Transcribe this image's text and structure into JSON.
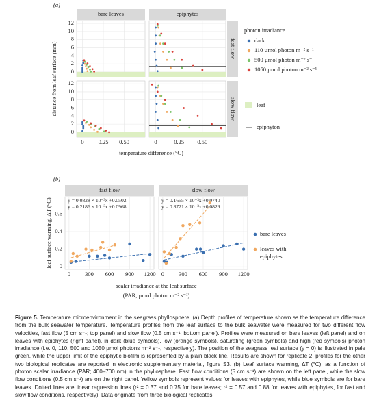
{
  "panel_labels": [
    "(a)",
    "(b)"
  ],
  "chart_data": [
    {
      "type": "scatter",
      "x_label": "temperature difference (°C)",
      "y_label": "distance from leaf surface (mm)",
      "columns": [
        "bare leaves",
        "epiphytes"
      ],
      "rows": [
        "fast flow",
        "slow flow"
      ],
      "xlim": [
        -0.07,
        0.75
      ],
      "xticks": [
        0,
        0.25,
        {
          "value": 0.5,
          "label": "0.50"
        }
      ],
      "ylim": [
        -1.2,
        12.7
      ],
      "yticks": [
        0,
        2,
        4,
        6,
        8,
        10,
        12
      ],
      "grid": true,
      "legend_title": "photon irradiance",
      "series": [
        {
          "name": "dark",
          "color": "#3a6fb0"
        },
        {
          "name": "110 µmol photon m⁻² s⁻¹",
          "color": "#f0a860"
        },
        {
          "name": "500 µmol photon m⁻² s⁻¹",
          "color": "#7cc46a"
        },
        {
          "name": "1050 µmol photon m⁻² s⁻¹",
          "color": "#d9413a"
        }
      ],
      "leaf_label": "leaf",
      "leaf_color": "#ddefc2",
      "epiphyton_label": "epiphyton",
      "panels": [
        [
          {
            "data": [
              {
                "x": [
                  0.01,
                  0.01,
                  0,
                  0,
                  0,
                  0
                ],
                "y": [
                  2.8,
                  2.2,
                  1.6,
                  1,
                  0.5,
                  0
                ]
              },
              {
                "x": [
                  0.02,
                  0.03,
                  0.04,
                  0.05,
                  0.06
                ],
                "y": [
                  2.6,
                  2,
                  1.4,
                  0.8,
                  0.2
                ]
              },
              {
                "x": [
                  0.03,
                  0.05,
                  0.07,
                  0.09,
                  0.1
                ],
                "y": [
                  2.5,
                  1.8,
                  1.2,
                  0.6,
                  0.1
                ]
              },
              {
                "x": [
                  0.02,
                  0.06,
                  0.09,
                  0.12,
                  0.14
                ],
                "y": [
                  2.9,
                  2.1,
                  1.4,
                  0.7,
                  0.1
                ]
              }
            ]
          },
          {
            "epiphyton_y": 1.3,
            "data": [
              {
                "x": [
                  0,
                  0,
                  0,
                  -0.01,
                  0,
                  0.01,
                  0.02
                ],
                "y": [
                  11,
                  9,
                  7,
                  5,
                  3,
                  1.5,
                  0.2
                ]
              },
              {
                "x": [
                  0.03,
                  0.04,
                  0.05,
                  0.08,
                  0.12,
                  0.16
                ],
                "y": [
                  11,
                  9,
                  7,
                  5,
                  3,
                  1
                ]
              },
              {
                "x": [
                  0.02,
                  0.05,
                  0.08,
                  0.14,
                  0.2,
                  0.28
                ],
                "y": [
                  11.5,
                  9,
                  7,
                  5,
                  3,
                  1
                ]
              },
              {
                "x": [
                  0.02,
                  0.06,
                  0.1,
                  0.18,
                  0.28,
                  0.4,
                  0.5
                ],
                "y": [
                  11.8,
                  9.5,
                  7,
                  5,
                  3,
                  1.5,
                  0.5
                ]
              }
            ]
          }
        ],
        [
          {
            "data": [
              {
                "x": [
                  0,
                  0,
                  0.01,
                  0.01,
                  0
                ],
                "y": [
                  2.5,
                  2,
                  1.5,
                  1,
                  0.3
                ]
              },
              {
                "x": [
                  0.04,
                  0.08,
                  0.1,
                  0.14,
                  0.18
                ],
                "y": [
                  2.3,
                  1.8,
                  1.2,
                  0.6,
                  0.1
                ]
              },
              {
                "x": [
                  0.05,
                  0.1,
                  0.15,
                  0.2,
                  0.26
                ],
                "y": [
                  2.6,
                  2,
                  1.4,
                  0.8,
                  0.2
                ]
              },
              {
                "x": [
                  0.02,
                  0.1,
                  0.16,
                  0.22,
                  0.28,
                  0.32
                ],
                "y": [
                  2.9,
                  2.2,
                  1.6,
                  1,
                  0.4,
                  0
                ]
              }
            ]
          },
          {
            "epiphyton_y": 1.6,
            "data": [
              {
                "x": [
                  0,
                  0,
                  0.01,
                  0,
                  0.02,
                  0.03
                ],
                "y": [
                  11,
                  9,
                  7,
                  5,
                  3,
                  1
                ]
              },
              {
                "x": [
                  0.02,
                  0.05,
                  0.08,
                  0.12,
                  0.18,
                  0.24
                ],
                "y": [
                  11,
                  9,
                  7,
                  5,
                  3,
                  1.5
                ]
              },
              {
                "x": [
                  0.03,
                  0.06,
                  0.1,
                  0.16,
                  0.26,
                  0.36
                ],
                "y": [
                  11.5,
                  9,
                  7,
                  5,
                  3,
                  1.2
                ]
              },
              {
                "x": [
                  -0.04,
                  0.02,
                  0.1,
                  0.3,
                  0.45,
                  0.6,
                  0.7
                ],
                "y": [
                  11.8,
                  10,
                  8,
                  6,
                  4,
                  2,
                  1
                ]
              }
            ]
          }
        ]
      ]
    },
    {
      "type": "scatter",
      "x_label": [
        "scalar irradiance at the leaf surface",
        "(PAR, µmol photon m⁻² s⁻¹)"
      ],
      "y_label": "leaf surface warming, ΔT (°C)",
      "columns": [
        "fast flow",
        "slow flow"
      ],
      "rows": [],
      "xlim": [
        -60,
        1260
      ],
      "xticks": [
        0,
        300,
        600,
        900,
        1200
      ],
      "ylim": [
        -0.03,
        0.8
      ],
      "yticks": [
        0,
        {
          "value": 0.2,
          "label": "0.2"
        },
        {
          "value": 0.4,
          "label": "0.4"
        },
        {
          "value": 0.6,
          "label": "0.6"
        }
      ],
      "grid": true,
      "series": [
        {
          "name": "bare leaves",
          "color": "#3a6fb0"
        },
        {
          "name": "leaves with epiphytes",
          "color": "#f0a860"
        }
      ],
      "panels": [
        [
          {
            "data": [
              {
                "x": [
                  30,
                  100,
                  300,
                  420,
                  530,
                  600,
                  900,
                  1100,
                  1200
                ],
                "y": [
                  0.05,
                  0.06,
                  0.12,
                  0.12,
                  0.13,
                  0.1,
                  0.26,
                  0.07,
                  0.14
                ],
                "fit": {
                  "slope": 8.28e-05,
                  "intercept": 0.0502,
                  "label": "y = 0.0828 × 10⁻³x +0.0502"
                }
              },
              {
                "x": [
                  30,
                  60,
                  120,
                  250,
                  340,
                  470,
                  500,
                  600,
                  680
                ],
                "y": [
                  0.06,
                  0.15,
                  0.12,
                  0.2,
                  0.19,
                  0.22,
                  0.28,
                  0.19,
                  0.25
                ],
                "fit": {
                  "slope": 0.0002186,
                  "intercept": 0.0968,
                  "label": "y = 0.2186 × 10⁻³x +0.0968"
                }
              }
            ]
          },
          {
            "data": [
              {
                "x": [
                  20,
                  60,
                  130,
                  300,
                  500,
                  560,
                  600,
                  900,
                  1100,
                  1200
                ],
                "y": [
                  0.06,
                  0.05,
                  0.14,
                  0.12,
                  0.2,
                  0.2,
                  0.16,
                  0.24,
                  0.26,
                  0.2
                ],
                "fit": {
                  "slope": 0.0001655,
                  "intercept": 0.074,
                  "label": "y = 0.1655 × 10⁻³x +0.0740"
                }
              },
              {
                "x": [
                  20,
                  50,
                  100,
                  200,
                  260,
                  300,
                  400,
                  550,
                  700
                ],
                "y": [
                  0.17,
                  0.04,
                  0.15,
                  0.22,
                  0.32,
                  0.47,
                  0.48,
                  0.5,
                  0.73
                ],
                "fit": {
                  "slope": 0.0008721,
                  "intercept": 0.0829,
                  "label": "y = 0.8721 × 10⁻³x +0.0829"
                }
              }
            ]
          }
        ]
      ]
    }
  ],
  "caption": {
    "label": "Figure 5.",
    "text": "Temperature microenvironment in the seagrass phyllosphere. (a) Depth profiles of temperature shown as the temperature difference from the bulk seawater temperature. Temperature profiles from the leaf surface to the bulk seawater were measured for two different flow velocities, fast flow (5 cm s⁻¹; top panel) and slow flow (0.5 cm s⁻¹; bottom panel). Profiles were measured on bare leaves (left panel) and on leaves with epiphytes (right panel), in dark (blue symbols), low (orange symbols), saturating (green symbols) and high (red symbols) photon irradiance (i.e. 0, 110, 500 and 1050 µmol photons m⁻² s⁻¹, respectively). The position of the seagrass leaf surface (y = 0) is illustrated in pale green, while the upper limit of the epiphytic biofilm is represented by a plain black line. Results are shown for replicate 2, profiles for the other two biological replicates are reported in electronic supplementary material, figure S3. (b) Leaf surface warming, ΔT (°C), as a function of photon scalar irradiance (PAR; 400–700 nm) in the phyllosphere. Fast flow conditions (5 cm s⁻¹) are shown on the left panel, while the slow flow conditions (0.5 cm s⁻¹) are on the right panel. Yellow symbols represent values for leaves with epiphytes, while blue symbols are for bare leaves. Dotted lines are linear regression lines (r² = 0.37 and 0.75 for bare leaves; r² = 0.57 and 0.88 for leaves with epiphytes, for fast and slow flow conditions, respectively). Data originate from three biological replicates."
  }
}
